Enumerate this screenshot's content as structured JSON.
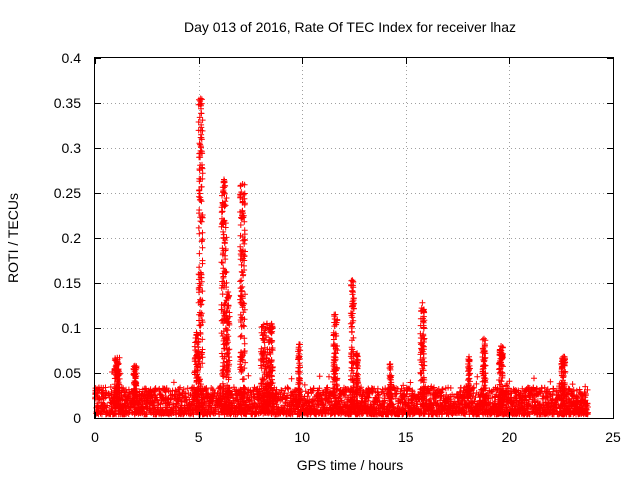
{
  "chart_data": {
    "type": "scatter",
    "title": "Day 013 of 2016, Rate Of TEC Index for receiver lhaz",
    "xlabel": "GPS time / hours",
    "ylabel": "ROTI / TECUs",
    "xlim": [
      0,
      25
    ],
    "ylim": [
      0,
      0.4
    ],
    "xticks": [
      0,
      5,
      10,
      15,
      20,
      25
    ],
    "xtick_labels": [
      "0",
      "5",
      "10",
      "15",
      "20",
      "25"
    ],
    "yticks": [
      0,
      0.05,
      0.1,
      0.15,
      0.2,
      0.25,
      0.3,
      0.35,
      0.4
    ],
    "ytick_labels": [
      "0",
      "0.05",
      "0.1",
      "0.15",
      "0.2",
      "0.25",
      "0.3",
      "0.35",
      "0.4"
    ],
    "grid": true,
    "marker": "+",
    "series": [
      {
        "name": "ROTI",
        "color": "#ff0000",
        "background": {
          "x_range": [
            0,
            23.8
          ],
          "typical_max": 0.03
        },
        "bursts": [
          {
            "t": [
              0.95,
              1.2
            ],
            "max": 0.067
          },
          {
            "t": [
              1.85,
              2.0
            ],
            "max": 0.058
          },
          {
            "t": [
              4.8,
              5.0
            ],
            "max": 0.095
          },
          {
            "t": [
              5.0,
              5.2
            ],
            "max": 0.355
          },
          {
            "t": [
              6.1,
              6.35
            ],
            "max": 0.265
          },
          {
            "t": [
              6.35,
              6.5
            ],
            "max": 0.14
          },
          {
            "t": [
              7.0,
              7.25
            ],
            "max": 0.26
          },
          {
            "t": [
              8.0,
              8.6
            ],
            "max": 0.105
          },
          {
            "t": [
              9.8,
              9.9
            ],
            "max": 0.082
          },
          {
            "t": [
              11.5,
              11.7
            ],
            "max": 0.115
          },
          {
            "t": [
              12.35,
              12.5
            ],
            "max": 0.153
          },
          {
            "t": [
              12.6,
              12.7
            ],
            "max": 0.072
          },
          {
            "t": [
              14.2,
              14.3
            ],
            "max": 0.06
          },
          {
            "t": [
              15.7,
              15.9
            ],
            "max": 0.128
          },
          {
            "t": [
              18.0,
              18.1
            ],
            "max": 0.068
          },
          {
            "t": [
              18.7,
              18.85
            ],
            "max": 0.088
          },
          {
            "t": [
              19.5,
              19.7
            ],
            "max": 0.08
          },
          {
            "t": [
              22.5,
              22.7
            ],
            "max": 0.068
          }
        ]
      }
    ]
  }
}
